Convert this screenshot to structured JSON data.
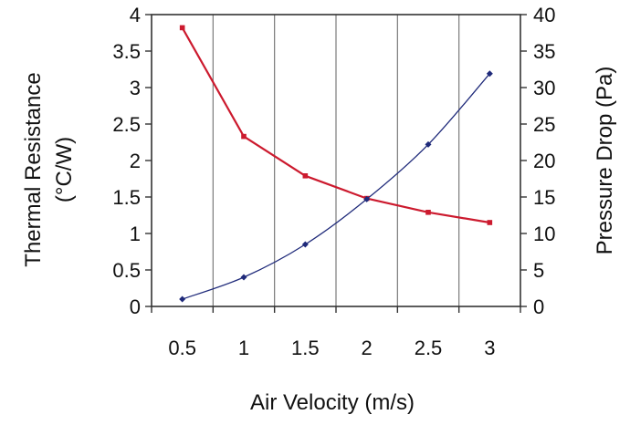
{
  "chart_data": {
    "type": "line",
    "title": "",
    "xlabel": "Air Velocity (m/s)",
    "ylabel_left_lines": [
      "Thermal Resistance",
      "(°C/W)"
    ],
    "ylabel_right": "Pressure Drop (Pa)",
    "x_categories": [
      "0.5",
      "1",
      "1.5",
      "2",
      "2.5",
      "3"
    ],
    "y_left": {
      "min": 0,
      "max": 4,
      "ticks": [
        0,
        0.5,
        1,
        1.5,
        2,
        2.5,
        3,
        3.5,
        4
      ],
      "tick_labels": [
        "0",
        "0.5",
        "1",
        "1.5",
        "2",
        "2.5",
        "3",
        "3.5",
        "4"
      ]
    },
    "y_right": {
      "min": 0,
      "max": 40,
      "ticks": [
        0,
        5,
        10,
        15,
        20,
        25,
        30,
        35,
        40
      ],
      "tick_labels": [
        "0",
        "5",
        "10",
        "15",
        "20",
        "25",
        "30",
        "35",
        "40"
      ]
    },
    "grid": "vertical",
    "legend": "none",
    "series": [
      {
        "axis": "left",
        "color": "#cc1a2e",
        "x": [
          0.5,
          1,
          1.5,
          2,
          2.5,
          3
        ],
        "values": [
          3.82,
          2.33,
          1.79,
          1.48,
          1.29,
          1.15
        ]
      },
      {
        "axis": "right",
        "color": "#1f2a7a",
        "x": [
          0.5,
          1,
          1.5,
          2,
          2.5,
          3
        ],
        "values": [
          1.0,
          4.0,
          8.5,
          14.7,
          22.2,
          31.9
        ]
      }
    ]
  }
}
